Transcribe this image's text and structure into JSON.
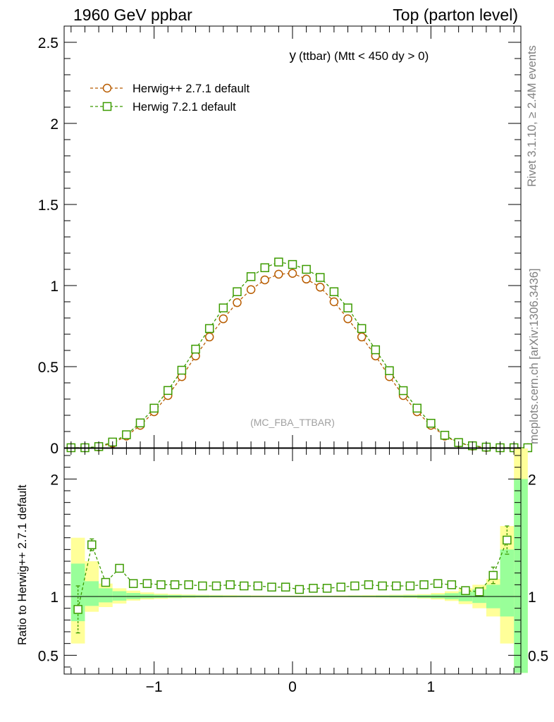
{
  "header": {
    "left": "1960 GeV ppbar",
    "right": "Top (parton level)"
  },
  "side": {
    "rivet": "Rivet 3.1.10, ≥ 2.4M events",
    "mcplots": "mcplots.cern.ch [arXiv:1306.3436]"
  },
  "chart_data": [
    {
      "type": "line",
      "title_main": "y",
      "title_rest": "(ttbar) (Mtt < 450 dy > 0)",
      "watermark": "(MC_FBA_TTBAR)",
      "xlim": [
        -1.65,
        1.65
      ],
      "ylim": [
        0,
        2.6
      ],
      "yticks": [
        0,
        0.5,
        1,
        1.5,
        2,
        2.5
      ],
      "ytick_labels": [
        "0",
        "0.5",
        "1",
        "1.5",
        "2",
        "2.5"
      ],
      "x": [
        -1.6,
        -1.5,
        -1.4,
        -1.3,
        -1.2,
        -1.1,
        -1.0,
        -0.9,
        -0.8,
        -0.7,
        -0.6,
        -0.5,
        -0.4,
        -0.3,
        -0.2,
        -0.1,
        0.0,
        0.1,
        0.2,
        0.3,
        0.4,
        0.5,
        0.6,
        0.7,
        0.8,
        0.9,
        1.0,
        1.1,
        1.2,
        1.3,
        1.4,
        1.5,
        1.6,
        1.7
      ],
      "series": [
        {
          "name": "Herwig++ 2.7.1 default",
          "color": "#b85c00",
          "marker": "circle",
          "values": [
            0.0,
            0.0,
            0.005,
            0.028,
            0.072,
            0.138,
            0.222,
            0.322,
            0.438,
            0.566,
            0.683,
            0.795,
            0.895,
            0.975,
            1.035,
            1.07,
            1.075,
            1.04,
            0.99,
            0.9,
            0.795,
            0.683,
            0.566,
            0.438,
            0.322,
            0.222,
            0.138,
            0.072,
            0.03,
            0.01,
            0.002,
            0.0,
            0.0,
            0.0
          ]
        },
        {
          "name": "Herwig 7.2.1 default",
          "color": "#3c9b00",
          "marker": "square",
          "values": [
            0.0,
            0.0,
            0.007,
            0.035,
            0.08,
            0.153,
            0.244,
            0.353,
            0.478,
            0.608,
            0.735,
            0.862,
            0.962,
            1.055,
            1.11,
            1.145,
            1.13,
            1.1,
            1.05,
            0.962,
            0.862,
            0.735,
            0.604,
            0.475,
            0.352,
            0.244,
            0.151,
            0.077,
            0.032,
            0.012,
            0.004,
            0.0,
            0.0,
            0.0
          ]
        }
      ]
    },
    {
      "type": "line",
      "ylabel": "Ratio to Herwig++ 2.7.1 default",
      "xlim": [
        -1.65,
        1.65
      ],
      "ylim": [
        0.34,
        2.26
      ],
      "xticks": [
        -1,
        0,
        1
      ],
      "xtick_labels": [
        "−1",
        "0",
        "1"
      ],
      "yticks": [
        0.5,
        1,
        2
      ],
      "ytick_labels": [
        "0.5",
        "1",
        "2"
      ],
      "reference_line": 1,
      "band_edges": [
        -1.6,
        -1.5,
        -1.4,
        -1.3,
        -1.2,
        -1.1,
        -1.0,
        -0.9,
        -0.8,
        -0.7,
        -0.6,
        -0.5,
        -0.4,
        -0.3,
        -0.2,
        -0.1,
        0.0,
        0.1,
        0.2,
        0.3,
        0.4,
        0.5,
        0.6,
        0.7,
        0.8,
        0.9,
        1.0,
        1.1,
        1.2,
        1.3,
        1.4,
        1.5,
        1.6,
        1.7
      ],
      "band_yellow": [
        [
          0.6,
          1.5
        ],
        [
          0.87,
          1.3
        ],
        [
          0.91,
          1.11
        ],
        [
          0.94,
          1.07
        ],
        [
          0.965,
          1.05
        ],
        [
          0.975,
          1.035
        ],
        [
          0.98,
          1.025
        ],
        [
          0.985,
          1.02
        ],
        [
          0.988,
          1.017
        ],
        [
          0.99,
          1.015
        ],
        [
          0.991,
          1.013
        ],
        [
          0.992,
          1.012
        ],
        [
          0.993,
          1.011
        ],
        [
          0.993,
          1.01
        ],
        [
          0.994,
          1.009
        ],
        [
          0.994,
          1.009
        ],
        [
          0.994,
          1.009
        ],
        [
          0.994,
          1.009
        ],
        [
          0.994,
          1.009
        ],
        [
          0.993,
          1.01
        ],
        [
          0.993,
          1.011
        ],
        [
          0.992,
          1.012
        ],
        [
          0.991,
          1.013
        ],
        [
          0.99,
          1.015
        ],
        [
          0.988,
          1.017
        ],
        [
          0.983,
          1.02
        ],
        [
          0.975,
          1.03
        ],
        [
          0.962,
          1.045
        ],
        [
          0.935,
          1.07
        ],
        [
          0.9,
          1.1
        ],
        [
          0.83,
          1.15
        ],
        [
          0.6,
          1.6
        ],
        [
          0.35,
          2.26
        ]
      ],
      "band_green": [
        [
          0.79,
          1.28
        ],
        [
          0.92,
          1.13
        ],
        [
          0.95,
          1.07
        ],
        [
          0.965,
          1.045
        ],
        [
          0.978,
          1.03
        ],
        [
          0.985,
          1.02
        ],
        [
          0.988,
          1.015
        ],
        [
          0.99,
          1.012
        ],
        [
          0.992,
          1.01
        ],
        [
          0.993,
          1.009
        ],
        [
          0.994,
          1.008
        ],
        [
          0.995,
          1.007
        ],
        [
          0.995,
          1.007
        ],
        [
          0.996,
          1.006
        ],
        [
          0.996,
          1.006
        ],
        [
          0.996,
          1.006
        ],
        [
          0.996,
          1.006
        ],
        [
          0.996,
          1.006
        ],
        [
          0.996,
          1.006
        ],
        [
          0.996,
          1.006
        ],
        [
          0.995,
          1.007
        ],
        [
          0.995,
          1.007
        ],
        [
          0.994,
          1.008
        ],
        [
          0.993,
          1.009
        ],
        [
          0.992,
          1.01
        ],
        [
          0.989,
          1.012
        ],
        [
          0.985,
          1.017
        ],
        [
          0.977,
          1.028
        ],
        [
          0.96,
          1.04
        ],
        [
          0.945,
          1.06
        ],
        [
          0.9,
          1.1
        ],
        [
          0.83,
          1.4
        ],
        [
          0.35,
          2.0
        ]
      ],
      "series": [
        {
          "name": "Herwig 7.2.1 default",
          "color": "#3c9b00",
          "marker": "square",
          "x": [
            -1.55,
            -1.45,
            -1.35,
            -1.25,
            -1.15,
            -1.05,
            -0.95,
            -0.85,
            -0.75,
            -0.65,
            -0.55,
            -0.45,
            -0.35,
            -0.25,
            -0.15,
            -0.05,
            0.05,
            0.15,
            0.25,
            0.35,
            0.45,
            0.55,
            0.65,
            0.75,
            0.85,
            0.95,
            1.05,
            1.15,
            1.25,
            1.35,
            1.45,
            1.55
          ],
          "values": [
            0.89,
            1.44,
            1.12,
            1.24,
            1.11,
            1.11,
            1.1,
            1.1,
            1.1,
            1.09,
            1.09,
            1.1,
            1.09,
            1.09,
            1.08,
            1.08,
            1.06,
            1.07,
            1.07,
            1.08,
            1.09,
            1.1,
            1.09,
            1.09,
            1.09,
            1.1,
            1.11,
            1.1,
            1.05,
            1.04,
            1.18,
            1.48
          ],
          "errors": [
            0.2,
            0.05,
            0.03,
            0.02,
            0.01,
            0.01,
            0.01,
            0.01,
            0.01,
            0.01,
            0.01,
            0.01,
            0.01,
            0.01,
            0.01,
            0.01,
            0.01,
            0.01,
            0.01,
            0.01,
            0.01,
            0.01,
            0.01,
            0.01,
            0.01,
            0.01,
            0.01,
            0.01,
            0.02,
            0.03,
            0.07,
            0.12
          ]
        }
      ]
    }
  ]
}
